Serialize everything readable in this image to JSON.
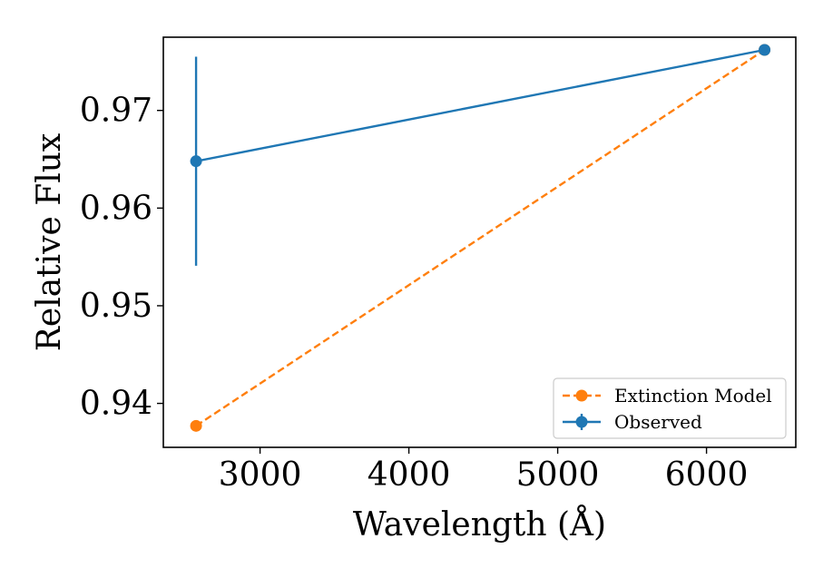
{
  "chart_data": {
    "type": "line",
    "title": "",
    "xlabel": "Wavelength (Å)",
    "ylabel": "Relative Flux",
    "xlim": [
      2350,
      6600
    ],
    "ylim": [
      0.9355,
      0.9775
    ],
    "xticks": [
      3000,
      4000,
      5000,
      6000
    ],
    "yticks": [
      0.94,
      0.95,
      0.96,
      0.97
    ],
    "grid": false,
    "legend_position": "lower right",
    "series": [
      {
        "name": "Extinction Model",
        "color": "#ff7f0e",
        "linestyle": "dashed",
        "marker": "circle",
        "x": [
          2570,
          6390
        ],
        "y": [
          0.9377,
          0.9762
        ]
      },
      {
        "name": "Observed",
        "color": "#1f77b4",
        "linestyle": "solid",
        "marker": "circle",
        "x": [
          2570,
          6390
        ],
        "y": [
          0.9648,
          0.9762
        ],
        "yerr": [
          0.0107,
          0.0
        ]
      }
    ]
  }
}
